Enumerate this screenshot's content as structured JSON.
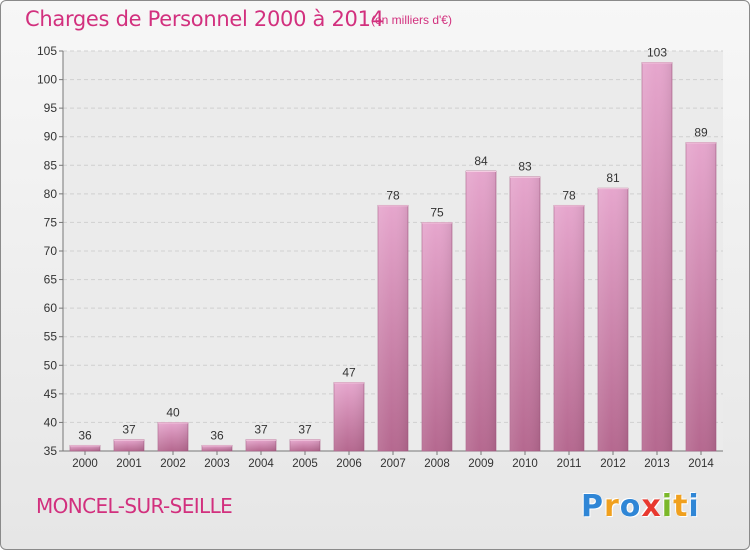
{
  "title": "Charges de Personnel 2000 à 2014",
  "subtitle": "(en milliers d'€)",
  "commune": "MONCEL-SUR-SEILLE",
  "logo": {
    "text": "Proxiti",
    "letters": [
      {
        "ch": "P",
        "color": "#2f86d6"
      },
      {
        "ch": "r",
        "color": "#f0a01e"
      },
      {
        "ch": "o",
        "color": "#2f86d6"
      },
      {
        "ch": "x",
        "color": "#e8392f"
      },
      {
        "ch": "i",
        "color": "#7bb82a"
      },
      {
        "ch": "t",
        "color": "#f0a01e"
      },
      {
        "ch": "i",
        "color": "#2f86d6"
      }
    ]
  },
  "colors": {
    "bar_top": "#e6a6cd",
    "bar_bottom": "#b5688f",
    "accent": "#d2307e",
    "grid": "#d0d0d0"
  },
  "chart_data": {
    "type": "bar",
    "categories": [
      "2000",
      "2001",
      "2002",
      "2003",
      "2004",
      "2005",
      "2006",
      "2007",
      "2008",
      "2009",
      "2010",
      "2011",
      "2012",
      "2013",
      "2014"
    ],
    "values": [
      36,
      37,
      40,
      36,
      37,
      37,
      47,
      78,
      75,
      84,
      83,
      78,
      81,
      103,
      89
    ],
    "ylim": [
      35,
      105
    ],
    "yticks": [
      35,
      40,
      45,
      50,
      55,
      60,
      65,
      70,
      75,
      80,
      85,
      90,
      95,
      100,
      105
    ],
    "grid": true,
    "data_labels": true
  }
}
